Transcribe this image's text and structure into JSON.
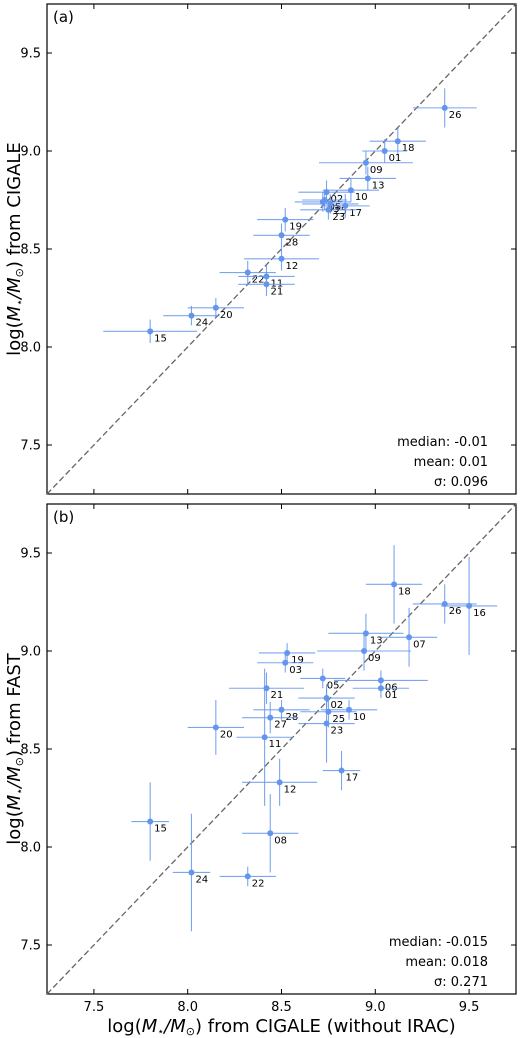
{
  "chart_data": [
    {
      "type": "scatter",
      "panel": "(a)",
      "xlabel": "",
      "ylabel_prefix": "log(",
      "ylabel_sub": "M",
      "ylabel_star": "⋆",
      "ylabel_mid": "/M",
      "ylabel_sun": "⊙",
      "ylabel_suffix": ") from CIGALE",
      "xlim": [
        7.25,
        9.75
      ],
      "ylim": [
        7.25,
        9.75
      ],
      "xticks": [
        7.5,
        8.0,
        8.5,
        9.0,
        9.5
      ],
      "yticks": [
        7.5,
        8.0,
        8.5,
        9.0,
        9.5
      ],
      "ytick_labels": [
        "7.5",
        "8.0",
        "8.5",
        "9.0",
        "9.5"
      ],
      "show_xtick_labels": false,
      "one_to_one_line": true,
      "marker_color": "#6495ed",
      "stats": [
        "median: -0.01",
        "mean: 0.01",
        "σ: 0.096"
      ],
      "points": [
        {
          "id": "26",
          "x": 9.37,
          "y": 9.22,
          "xerr": 0.17,
          "yerr": 0.1
        },
        {
          "id": "18",
          "x": 9.12,
          "y": 9.05,
          "xerr": 0.15,
          "yerr": 0.07
        },
        {
          "id": "01",
          "x": 9.05,
          "y": 9.0,
          "xerr": 0.12,
          "yerr": 0.06
        },
        {
          "id": "09",
          "x": 8.95,
          "y": 8.94,
          "xerr": 0.25,
          "yerr": 0.06
        },
        {
          "id": "13",
          "x": 8.96,
          "y": 8.86,
          "xerr": 0.15,
          "yerr": 0.06
        },
        {
          "id": "10",
          "x": 8.87,
          "y": 8.8,
          "xerr": 0.15,
          "yerr": 0.06
        },
        {
          "id": "02",
          "x": 8.74,
          "y": 8.79,
          "xerr": 0.15,
          "yerr": 0.06
        },
        {
          "id": "05",
          "x": 8.73,
          "y": 8.75,
          "xerr": 0.12,
          "yerr": 0.05
        },
        {
          "id": "03",
          "x": 8.72,
          "y": 8.74,
          "xerr": 0.15,
          "yerr": 0.05
        },
        {
          "id": "25",
          "x": 8.76,
          "y": 8.73,
          "xerr": 0.15,
          "yerr": 0.05
        },
        {
          "id": "17",
          "x": 8.84,
          "y": 8.72,
          "xerr": 0.13,
          "yerr": 0.06
        },
        {
          "id": "23",
          "x": 8.75,
          "y": 8.7,
          "xerr": 0.15,
          "yerr": 0.05
        },
        {
          "id": "19",
          "x": 8.52,
          "y": 8.65,
          "xerr": 0.15,
          "yerr": 0.06
        },
        {
          "id": "28",
          "x": 8.5,
          "y": 8.57,
          "xerr": 0.15,
          "yerr": 0.06
        },
        {
          "id": "12",
          "x": 8.5,
          "y": 8.45,
          "xerr": 0.2,
          "yerr": 0.06
        },
        {
          "id": "22",
          "x": 8.32,
          "y": 8.38,
          "xerr": 0.15,
          "yerr": 0.06
        },
        {
          "id": "11",
          "x": 8.42,
          "y": 8.36,
          "xerr": 0.15,
          "yerr": 0.06
        },
        {
          "id": "21",
          "x": 8.42,
          "y": 8.32,
          "xerr": 0.15,
          "yerr": 0.06
        },
        {
          "id": "20",
          "x": 8.15,
          "y": 8.2,
          "xerr": 0.15,
          "yerr": 0.05
        },
        {
          "id": "24",
          "x": 8.02,
          "y": 8.16,
          "xerr": 0.15,
          "yerr": 0.05
        },
        {
          "id": "15",
          "x": 7.8,
          "y": 8.08,
          "xerr": 0.25,
          "yerr": 0.06
        }
      ]
    },
    {
      "type": "scatter",
      "panel": "(b)",
      "xlabel_prefix": "log(",
      "xlabel_sub": "M",
      "xlabel_star": "⋆",
      "xlabel_mid": "/M",
      "xlabel_sun": "⊙",
      "xlabel_suffix": ") from CIGALE (without IRAC)",
      "ylabel_prefix": "log(",
      "ylabel_sub": "M",
      "ylabel_star": "⋆",
      "ylabel_mid": "/M",
      "ylabel_sun": "⊙",
      "ylabel_suffix": ") from FAST",
      "xlim": [
        7.25,
        9.75
      ],
      "ylim": [
        7.25,
        9.75
      ],
      "xticks": [
        7.5,
        8.0,
        8.5,
        9.0,
        9.5
      ],
      "xtick_labels": [
        "7.5",
        "8.0",
        "8.5",
        "9.0",
        "9.5"
      ],
      "yticks": [
        7.5,
        8.0,
        8.5,
        9.0,
        9.5
      ],
      "ytick_labels": [
        "7.5",
        "8.0",
        "8.5",
        "9.0",
        "9.5"
      ],
      "show_xtick_labels": true,
      "one_to_one_line": true,
      "marker_color": "#6495ed",
      "stats": [
        "median: -0.015",
        "mean: 0.018",
        "σ: 0.271"
      ],
      "points": [
        {
          "id": "18",
          "x": 9.1,
          "y": 9.34,
          "xerr": 0.15,
          "yerr": 0.2
        },
        {
          "id": "26",
          "x": 9.37,
          "y": 9.24,
          "xerr": 0.17,
          "yerr": 0.1
        },
        {
          "id": "16",
          "x": 9.5,
          "y": 9.23,
          "xerr": 0.15,
          "yerr": 0.25
        },
        {
          "id": "13",
          "x": 8.95,
          "y": 9.09,
          "xerr": 0.2,
          "yerr": 0.1
        },
        {
          "id": "07",
          "x": 9.18,
          "y": 9.07,
          "xerr": 0.15,
          "yerr": 0.15
        },
        {
          "id": "09",
          "x": 8.94,
          "y": 9.0,
          "xerr": 0.25,
          "yerr": 0.1
        },
        {
          "id": "19",
          "x": 8.53,
          "y": 8.99,
          "xerr": 0.15,
          "yerr": 0.05
        },
        {
          "id": "03",
          "x": 8.52,
          "y": 8.94,
          "xerr": 0.15,
          "yerr": 0.05
        },
        {
          "id": "05",
          "x": 8.72,
          "y": 8.86,
          "xerr": 0.12,
          "yerr": 0.05
        },
        {
          "id": "06",
          "x": 9.03,
          "y": 8.85,
          "xerr": 0.25,
          "yerr": 0.05
        },
        {
          "id": "01",
          "x": 9.03,
          "y": 8.81,
          "xerr": 0.15,
          "yerr": 0.05
        },
        {
          "id": "21",
          "x": 8.42,
          "y": 8.81,
          "xerr": 0.2,
          "yerr": 0.08
        },
        {
          "id": "02",
          "x": 8.74,
          "y": 8.76,
          "xerr": 0.15,
          "yerr": 0.05
        },
        {
          "id": "28",
          "x": 8.5,
          "y": 8.7,
          "xerr": 0.15,
          "yerr": 0.05
        },
        {
          "id": "10",
          "x": 8.86,
          "y": 8.7,
          "xerr": 0.15,
          "yerr": 0.05
        },
        {
          "id": "25",
          "x": 8.75,
          "y": 8.69,
          "xerr": 0.15,
          "yerr": 0.08
        },
        {
          "id": "27",
          "x": 8.44,
          "y": 8.66,
          "xerr": 0.15,
          "yerr": 0.08
        },
        {
          "id": "23",
          "x": 8.74,
          "y": 8.63,
          "xerr": 0.15,
          "yerr": 0.2
        },
        {
          "id": "20",
          "x": 8.15,
          "y": 8.61,
          "xerr": 0.15,
          "yerr": 0.14
        },
        {
          "id": "11",
          "x": 8.41,
          "y": 8.56,
          "xerr": 0.15,
          "yerr": 0.35
        },
        {
          "id": "17",
          "x": 8.82,
          "y": 8.39,
          "xerr": 0.1,
          "yerr": 0.1
        },
        {
          "id": "12",
          "x": 8.49,
          "y": 8.33,
          "xerr": 0.2,
          "yerr": 0.12
        },
        {
          "id": "15",
          "x": 7.8,
          "y": 8.13,
          "xerr": 0.1,
          "yerr": 0.2
        },
        {
          "id": "08",
          "x": 8.44,
          "y": 8.07,
          "xerr": 0.15,
          "yerr": 0.2
        },
        {
          "id": "24",
          "x": 8.02,
          "y": 7.87,
          "xerr": 0.1,
          "yerr": 0.3
        },
        {
          "id": "22",
          "x": 8.32,
          "y": 7.85,
          "xerr": 0.15,
          "yerr": 0.05
        }
      ]
    }
  ]
}
